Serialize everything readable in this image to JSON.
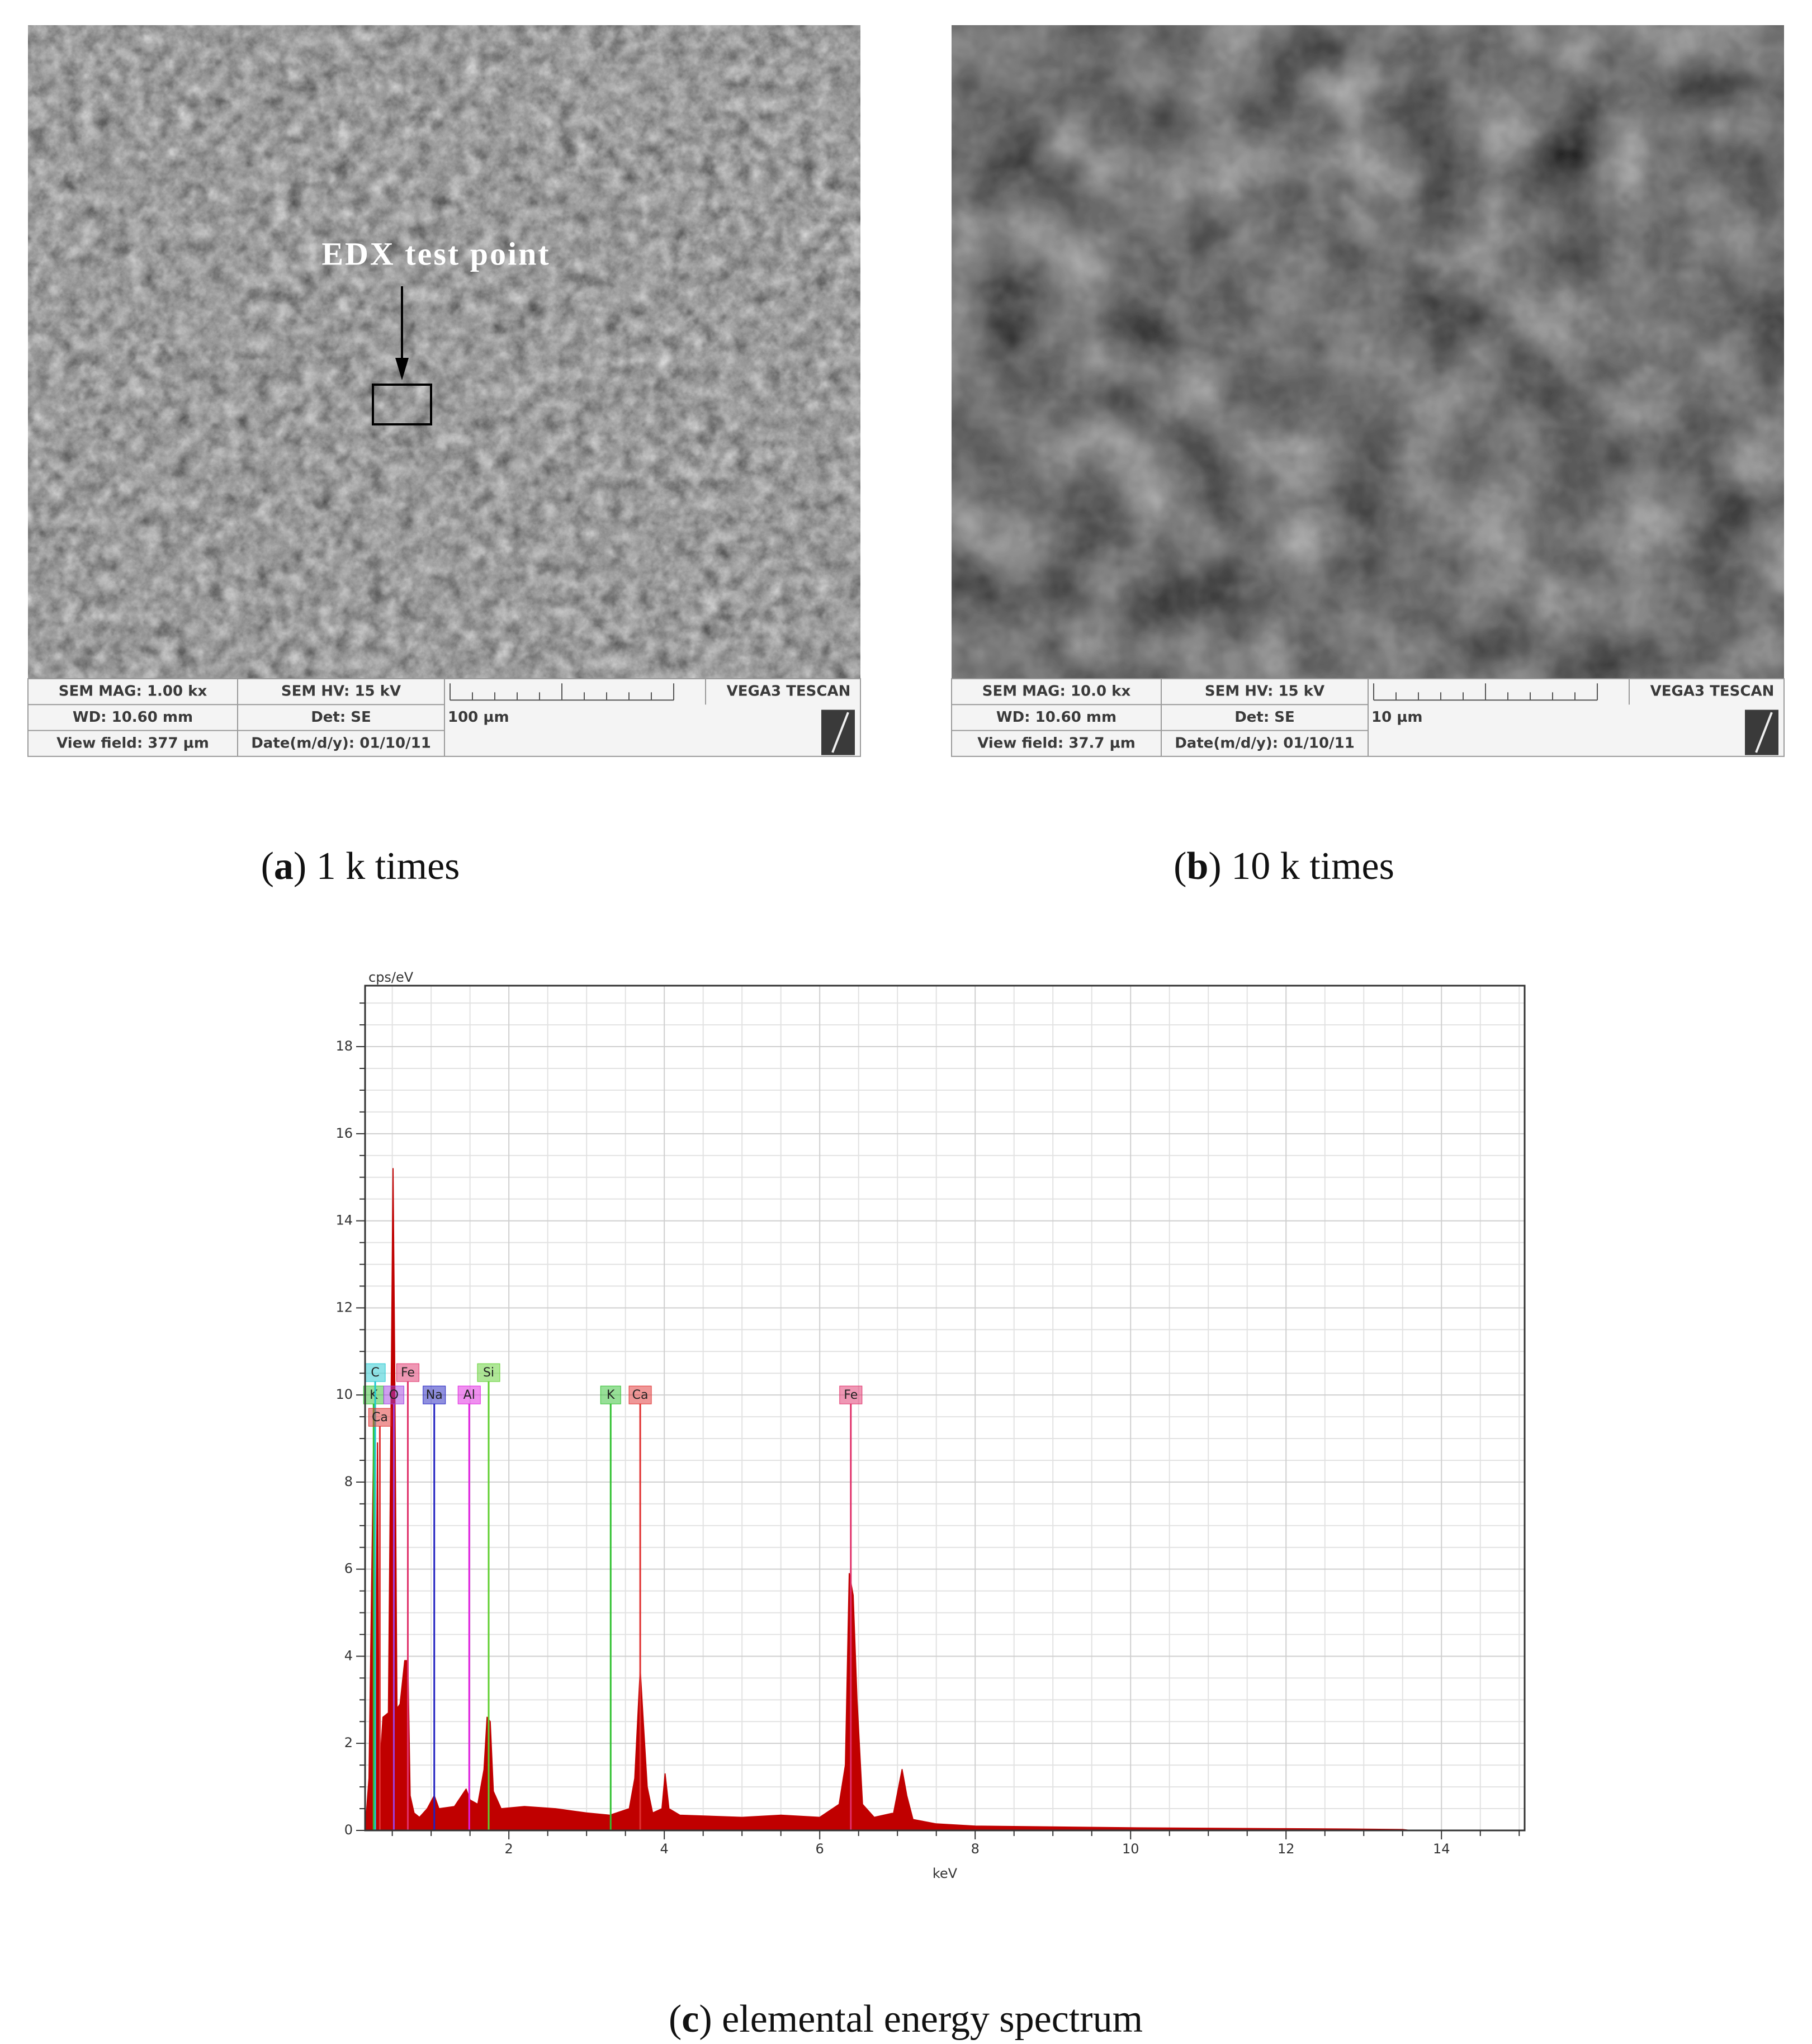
{
  "panels": [
    {
      "annotation": "EDX test point",
      "info": [
        [
          "SEM MAG: 1.00 kx",
          "SEM HV: 15 kV"
        ],
        [
          "WD: 10.60 mm",
          "Det: SE"
        ],
        [
          "View field: 377 µm",
          "Date(m/d/y): 01/10/11"
        ]
      ],
      "scale": "100 µm",
      "brand": "VEGA3 TESCAN",
      "caption": "(a) 1 k times"
    },
    {
      "info": [
        [
          "SEM MAG: 10.0 kx",
          "SEM HV: 15 kV"
        ],
        [
          "WD: 10.60 mm",
          "Det: SE"
        ],
        [
          "View field: 37.7 µm",
          "Date(m/d/y): 01/10/11"
        ]
      ],
      "scale": "10 µm",
      "brand": "VEGA3 TESCAN",
      "caption": "(b) 10 k times"
    }
  ],
  "chart_data": {
    "type": "area",
    "ylabel": "cps/eV",
    "xlabel": "keV",
    "caption": "(c) elemental energy spectrum",
    "color": "#c00000",
    "grid": true,
    "xlim": [
      0.15,
      15.07
    ],
    "ylim": [
      0,
      19.4
    ],
    "xticks": [
      2,
      4,
      6,
      8,
      10,
      12,
      14
    ],
    "yticks": [
      0,
      2,
      4,
      6,
      8,
      10,
      12,
      14,
      16,
      18
    ],
    "x": [
      0.15,
      0.2,
      0.26,
      0.28,
      0.31,
      0.33,
      0.38,
      0.45,
      0.49,
      0.51,
      0.53,
      0.56,
      0.6,
      0.66,
      0.7,
      0.73,
      0.78,
      0.85,
      0.95,
      1.04,
      1.1,
      1.3,
      1.45,
      1.5,
      1.6,
      1.68,
      1.72,
      1.76,
      1.8,
      1.9,
      2.2,
      2.6,
      3.0,
      3.3,
      3.55,
      3.62,
      3.69,
      3.73,
      3.78,
      3.85,
      3.97,
      4.01,
      4.06,
      4.2,
      5.0,
      5.5,
      6.0,
      6.25,
      6.33,
      6.38,
      6.43,
      6.48,
      6.55,
      6.7,
      6.95,
      7.06,
      7.12,
      7.2,
      7.5,
      8,
      9,
      10,
      11,
      12,
      13,
      13.5,
      13.6
    ],
    "values": [
      0,
      1.2,
      9.0,
      1.0,
      8.9,
      1.2,
      2.6,
      2.7,
      11.0,
      15.2,
      11.0,
      2.8,
      2.9,
      3.9,
      3.9,
      0.8,
      0.4,
      0.3,
      0.5,
      0.8,
      0.5,
      0.55,
      0.95,
      0.7,
      0.6,
      1.4,
      2.6,
      2.5,
      0.9,
      0.5,
      0.55,
      0.5,
      0.4,
      0.35,
      0.5,
      1.2,
      3.7,
      2.5,
      1.0,
      0.4,
      0.5,
      1.3,
      0.5,
      0.35,
      0.3,
      0.35,
      0.3,
      0.6,
      1.5,
      5.9,
      5.4,
      3.0,
      0.6,
      0.3,
      0.4,
      1.4,
      0.8,
      0.25,
      0.15,
      0.1,
      0.08,
      0.06,
      0.05,
      0.04,
      0.03,
      0.02,
      0
    ],
    "markers": [
      {
        "label": "K",
        "x": 0.26,
        "color": "#30c030"
      },
      {
        "label": "C",
        "x": 0.28,
        "color": "#20c8d0"
      },
      {
        "label": "Ca",
        "x": 0.34,
        "color": "#e03030"
      },
      {
        "label": "O",
        "x": 0.52,
        "color": "#a040e0"
      },
      {
        "label": "Fe",
        "x": 0.7,
        "color": "#e0306a"
      },
      {
        "label": "Na",
        "x": 1.04,
        "color": "#2020c0"
      },
      {
        "label": "Al",
        "x": 1.49,
        "color": "#e020e0"
      },
      {
        "label": "Si",
        "x": 1.74,
        "color": "#60d030"
      },
      {
        "label": "K",
        "x": 3.31,
        "color": "#30c030"
      },
      {
        "label": "Ca",
        "x": 3.69,
        "color": "#e03030"
      },
      {
        "label": "Fe",
        "x": 6.4,
        "color": "#e0306a"
      }
    ]
  }
}
